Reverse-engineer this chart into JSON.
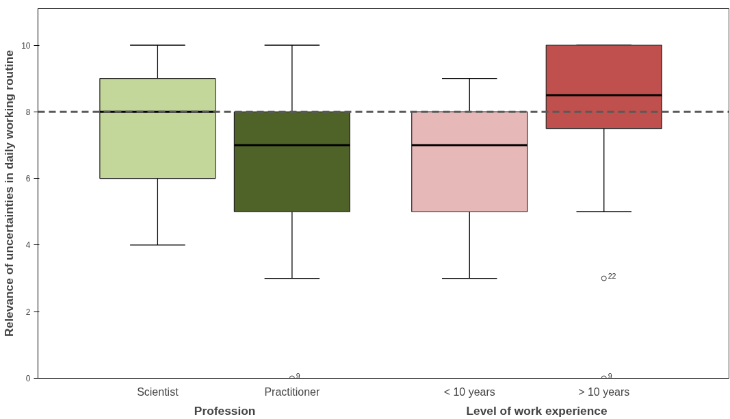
{
  "chart_data": {
    "type": "box",
    "ylabel": "Relevance of uncertainties in daily working routine",
    "categories": [
      "Scientist",
      "Practitioner",
      "< 10 years",
      "> 10 years"
    ],
    "colors": [
      "#c4d79b",
      "#4f6228",
      "#e6b9b8",
      "#c0504d"
    ],
    "boxes": [
      {
        "low": 4,
        "q1": 6,
        "median": 8,
        "q3": 9,
        "high": 10
      },
      {
        "low": 3,
        "q1": 5,
        "median": 7,
        "q3": 8,
        "high": 10,
        "outliers": [
          0
        ]
      },
      {
        "low": 3,
        "q1": 5,
        "median": 7,
        "q3": 8,
        "high": 9
      },
      {
        "low": 5,
        "q1": 7.5,
        "median": 8.5,
        "q3": 10,
        "high": 10,
        "outliers": [
          3,
          0
        ]
      }
    ],
    "ylim": [
      0,
      11.1
    ],
    "yticks": [
      0,
      2,
      4,
      6,
      8,
      10
    ],
    "grid": false,
    "ref_lines": [
      {
        "axis": "y",
        "value": 8,
        "color": "#595959",
        "line_style": "dashed"
      }
    ],
    "annotations": [
      "Profession",
      "Level of work experience",
      "9",
      "22",
      "9"
    ]
  }
}
